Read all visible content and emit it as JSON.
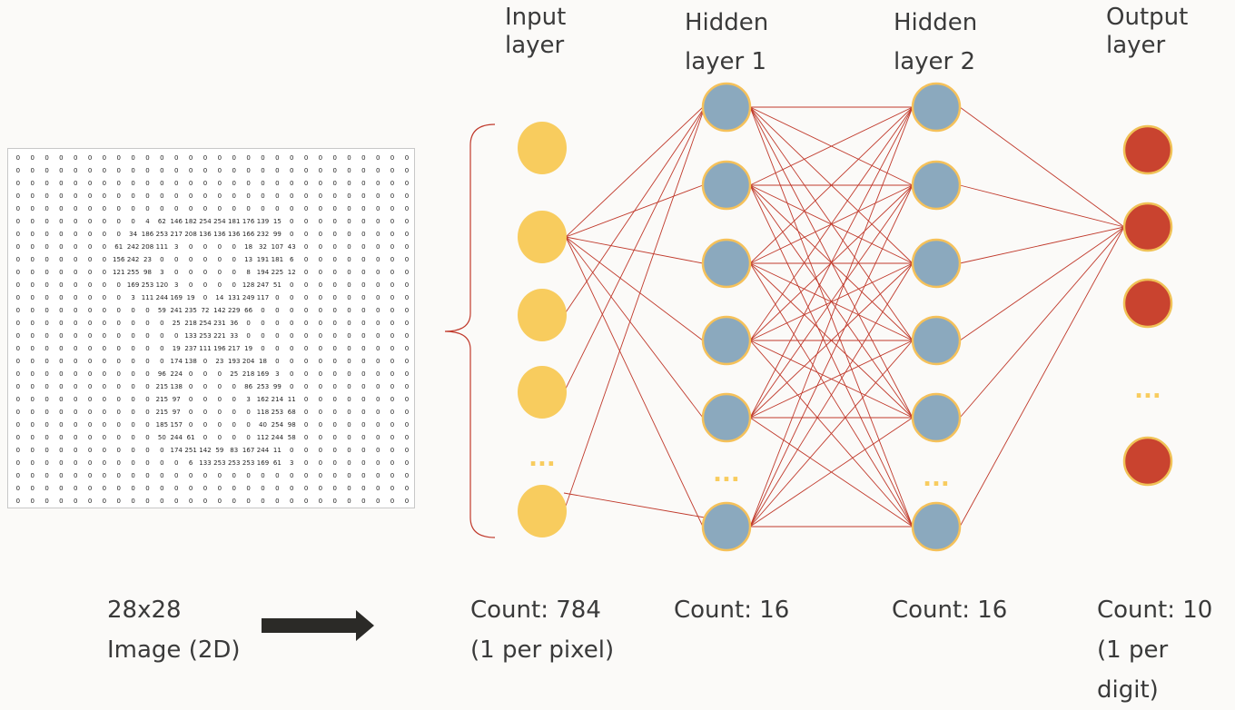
{
  "layers": {
    "input_title": [
      "Input",
      "layer"
    ],
    "hidden1_title": [
      "Hidden",
      "layer 1"
    ],
    "hidden2_title": [
      "Hidden",
      "layer 2"
    ],
    "output_title": [
      "Output",
      "layer"
    ]
  },
  "counts": {
    "input": [
      "Count: 784",
      "(1 per pixel)"
    ],
    "hidden1": "Count: 16",
    "hidden2": "Count: 16",
    "output": [
      "Count: 10",
      "(1 per digit)"
    ]
  },
  "image_label": [
    "28x28",
    "Image (2D)"
  ],
  "ellipsis": "...",
  "colors": {
    "input_node": "#f8cc5e",
    "hidden_node": "#8ba9be",
    "hidden_node_border": "#f5c15a",
    "output_node": "#c9432f",
    "output_node_border": "#f0c257",
    "edge": "#c0392b",
    "arrow": "#2b2a27"
  },
  "pixel_grid": {
    "rows": 28,
    "cols": 28,
    "nonzero_rows": {
      "5": {
        "9": "4",
        "10": "62",
        "11": "146",
        "12": "182",
        "13": "254",
        "14": "254",
        "15": "181",
        "16": "176",
        "17": "139",
        "18": "15"
      },
      "6": {
        "8": "34",
        "9": "186",
        "10": "253",
        "11": "217",
        "12": "208",
        "13": "136",
        "14": "136",
        "15": "136",
        "16": "166",
        "17": "232",
        "18": "99"
      },
      "7": {
        "7": "61",
        "8": "242",
        "9": "208",
        "10": "111",
        "11": "3",
        "16": "18",
        "17": "32",
        "18": "107",
        "19": "43"
      },
      "8": {
        "7": "156",
        "8": "242",
        "9": "23",
        "16": "13",
        "17": "191",
        "18": "181",
        "19": "6"
      },
      "9": {
        "7": "121",
        "8": "255",
        "9": "98",
        "10": "3",
        "16": "8",
        "17": "194",
        "18": "225",
        "19": "12"
      },
      "10": {
        "8": "169",
        "9": "253",
        "10": "120",
        "11": "3",
        "16": "128",
        "17": "247",
        "18": "51"
      },
      "11": {
        "8": "3",
        "9": "111",
        "10": "244",
        "11": "169",
        "12": "19",
        "14": "14",
        "15": "131",
        "16": "249",
        "17": "117"
      },
      "12": {
        "10": "59",
        "11": "241",
        "12": "235",
        "13": "72",
        "14": "142",
        "15": "229",
        "16": "66"
      },
      "13": {
        "11": "25",
        "12": "218",
        "13": "254",
        "14": "231",
        "15": "36"
      },
      "14": {
        "12": "133",
        "13": "253",
        "14": "221",
        "15": "33"
      },
      "15": {
        "11": "19",
        "12": "237",
        "13": "111",
        "14": "196",
        "15": "217",
        "16": "19"
      },
      "16": {
        "11": "174",
        "12": "138",
        "14": "23",
        "15": "193",
        "16": "204",
        "17": "18"
      },
      "17": {
        "10": "96",
        "11": "224",
        "15": "25",
        "16": "218",
        "17": "169",
        "18": "3"
      },
      "18": {
        "10": "215",
        "11": "138",
        "16": "86",
        "17": "253",
        "18": "99"
      },
      "19": {
        "10": "215",
        "11": "97",
        "16": "3",
        "17": "162",
        "18": "214",
        "19": "11"
      },
      "20": {
        "10": "215",
        "11": "97",
        "17": "118",
        "18": "253",
        "19": "68"
      },
      "21": {
        "10": "185",
        "11": "157",
        "17": "40",
        "18": "254",
        "19": "98"
      },
      "22": {
        "10": "50",
        "11": "244",
        "12": "61",
        "17": "112",
        "18": "244",
        "19": "58"
      },
      "23": {
        "11": "174",
        "12": "251",
        "13": "142",
        "14": "59",
        "15": "83",
        "16": "167",
        "17": "244",
        "18": "11"
      },
      "24": {
        "12": "6",
        "13": "133",
        "14": "253",
        "15": "253",
        "16": "253",
        "17": "169",
        "18": "61",
        "19": "3"
      }
    }
  }
}
